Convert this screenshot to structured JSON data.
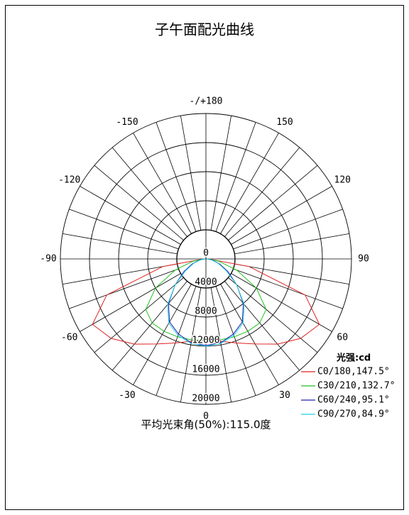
{
  "chart_data": {
    "type": "polar",
    "title": "子午面配光曲线",
    "rlim": [
      0,
      20000
    ],
    "rticks": [
      0,
      4000,
      8000,
      12000,
      16000,
      20000
    ],
    "angle_ticks": [
      {
        "value": 180,
        "label": "-/+180"
      },
      150,
      120,
      90,
      60,
      30,
      0,
      -30,
      -60,
      -90,
      -120,
      -150
    ],
    "legend_title": "光强:cd",
    "note": "平均光束角(50%):115.0度",
    "x": [
      -90,
      -80,
      -70,
      -60,
      -50,
      -40,
      -30,
      -20,
      -10,
      0,
      10,
      20,
      30,
      40,
      50,
      60,
      70,
      80,
      90
    ],
    "series": [
      {
        "name": "C0/180,147.5°",
        "color": "#e02020",
        "values": [
          300,
          6000,
          14500,
          18000,
          17000,
          15300,
          13500,
          12300,
          11500,
          11200,
          11500,
          12300,
          13500,
          15300,
          17000,
          18000,
          14500,
          6000,
          300
        ]
      },
      {
        "name": "C30/210,132.7°",
        "color": "#20c020",
        "values": [
          200,
          1800,
          4500,
          8000,
          10800,
          11500,
          11500,
          11400,
          11300,
          11200,
          11300,
          11400,
          11500,
          11500,
          10800,
          8000,
          4500,
          1800,
          200
        ]
      },
      {
        "name": "C60/240,95.1°",
        "color": "#2020b0",
        "values": [
          100,
          900,
          2000,
          3500,
          5500,
          8000,
          10000,
          11000,
          11700,
          11900,
          11700,
          11000,
          10000,
          8000,
          5500,
          3500,
          2000,
          900,
          100
        ]
      },
      {
        "name": "C90/270,84.9°",
        "color": "#20d0e0",
        "values": [
          100,
          800,
          1800,
          3200,
          5500,
          8200,
          10200,
          11200,
          11800,
          12000,
          11800,
          11200,
          10200,
          8200,
          5500,
          3200,
          1800,
          800,
          100
        ]
      }
    ]
  }
}
